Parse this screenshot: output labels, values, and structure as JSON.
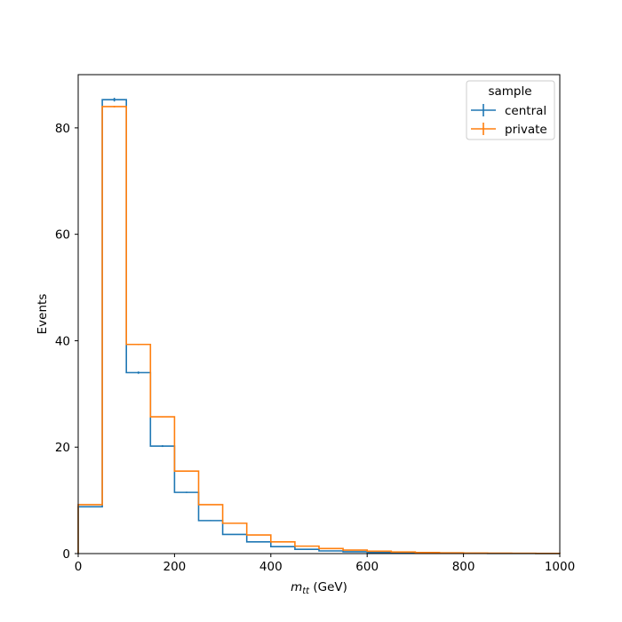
{
  "chart_data": {
    "type": "histogram",
    "xlabel_main": "m",
    "xlabel_sub": "tt",
    "xlabel_unit": " (GeV)",
    "ylabel": "Events",
    "xlim": [
      0,
      1000
    ],
    "ylim": [
      0,
      90
    ],
    "xticks": [
      0,
      200,
      400,
      600,
      800,
      1000
    ],
    "yticks": [
      0,
      20,
      40,
      60,
      80
    ],
    "bin_edges": [
      0,
      50,
      100,
      150,
      200,
      250,
      300,
      350,
      400,
      450,
      500,
      550,
      600,
      650,
      700,
      750,
      800,
      850,
      900,
      950,
      1000
    ],
    "legend": {
      "title": "sample",
      "position": "top-right"
    },
    "series": [
      {
        "name": "central",
        "color": "#1f77b4",
        "values": [
          8.8,
          85.3,
          34.0,
          20.2,
          11.5,
          6.2,
          3.6,
          2.2,
          1.3,
          0.8,
          0.5,
          0.35,
          0.22,
          0.15,
          0.1,
          0.06,
          0.04,
          0.03,
          0.02,
          0.01
        ],
        "errors": [
          0.12,
          0.35,
          0.22,
          0.17,
          0.13,
          0.09,
          0.07,
          0.05,
          0.04,
          0.03,
          0.03,
          0.02,
          0.02,
          0.02,
          0.01,
          0.01,
          0.01,
          0.01,
          0.01,
          0.01
        ]
      },
      {
        "name": "private",
        "color": "#ff7f0e",
        "values": [
          9.2,
          84.0,
          39.3,
          25.7,
          15.5,
          9.2,
          5.7,
          3.5,
          2.2,
          1.4,
          0.95,
          0.65,
          0.45,
          0.3,
          0.2,
          0.14,
          0.1,
          0.07,
          0.05,
          0.03
        ],
        "errors": [
          0.05,
          0.15,
          0.1,
          0.08,
          0.06,
          0.05,
          0.04,
          0.03,
          0.02,
          0.02,
          0.02,
          0.01,
          0.01,
          0.01,
          0.01,
          0.01,
          0.01,
          0.01,
          0.01,
          0.01
        ]
      }
    ]
  }
}
